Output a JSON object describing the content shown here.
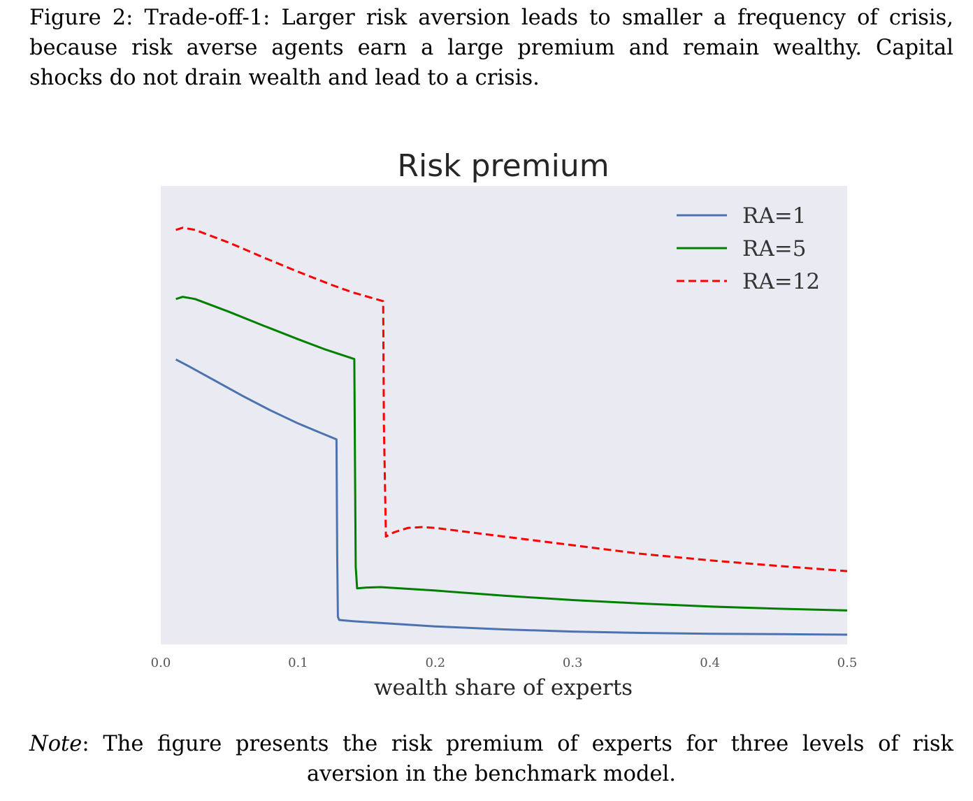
{
  "figure": {
    "caption": "Figure 2: Trade-off-1: Larger risk aversion leads to smaller a frequency of crisis, because risk averse agents earn a large premium and remain wealthy. Capital shocks do not drain wealth and lead to a crisis.",
    "note_label": "Note",
    "note_text": ": The figure presents the risk premium of experts for three levels of risk aversion in the benchmark model."
  },
  "chart_data": {
    "type": "line",
    "title": "Risk premium",
    "xlabel": "wealth share of experts",
    "ylabel": "",
    "xlim": [
      0.0,
      0.5
    ],
    "ylim": [
      0,
      1
    ],
    "y_ticks_shown": false,
    "x_ticks": [
      "0.0",
      "0.1",
      "0.2",
      "0.3",
      "0.4",
      "0.5"
    ],
    "grid": false,
    "background": "#eaeaf2",
    "legend_position": "top-right",
    "series": [
      {
        "name": "RA=1",
        "color": "#4c72b0",
        "style": "solid",
        "x": [
          0.011,
          0.02,
          0.04,
          0.06,
          0.08,
          0.1,
          0.115,
          0.128,
          0.1285,
          0.129,
          0.13,
          0.14,
          0.16,
          0.2,
          0.25,
          0.3,
          0.35,
          0.4,
          0.45,
          0.5
        ],
        "y": [
          0.65,
          0.635,
          0.6,
          0.565,
          0.532,
          0.502,
          0.482,
          0.465,
          0.2,
          0.054,
          0.047,
          0.044,
          0.04,
          0.032,
          0.025,
          0.02,
          0.017,
          0.015,
          0.014,
          0.013
        ]
      },
      {
        "name": "RA=5",
        "color": "#008000",
        "style": "solid",
        "x": [
          0.011,
          0.016,
          0.025,
          0.05,
          0.075,
          0.1,
          0.12,
          0.141,
          0.1415,
          0.142,
          0.143,
          0.15,
          0.16,
          0.2,
          0.25,
          0.3,
          0.35,
          0.4,
          0.45,
          0.5
        ],
        "y": [
          0.79,
          0.795,
          0.79,
          0.76,
          0.728,
          0.697,
          0.673,
          0.651,
          0.4,
          0.17,
          0.12,
          0.122,
          0.123,
          0.115,
          0.103,
          0.093,
          0.085,
          0.078,
          0.073,
          0.069
        ]
      },
      {
        "name": "RA=12",
        "color": "#ff0000",
        "style": "dashed",
        "x": [
          0.011,
          0.016,
          0.025,
          0.05,
          0.075,
          0.1,
          0.125,
          0.14,
          0.162,
          0.1625,
          0.164,
          0.17,
          0.18,
          0.19,
          0.2,
          0.25,
          0.3,
          0.35,
          0.4,
          0.45,
          0.5
        ],
        "y": [
          0.95,
          0.955,
          0.95,
          0.92,
          0.886,
          0.853,
          0.822,
          0.805,
          0.785,
          0.5,
          0.24,
          0.25,
          0.26,
          0.262,
          0.26,
          0.24,
          0.22,
          0.2,
          0.185,
          0.172,
          0.16
        ]
      }
    ]
  }
}
